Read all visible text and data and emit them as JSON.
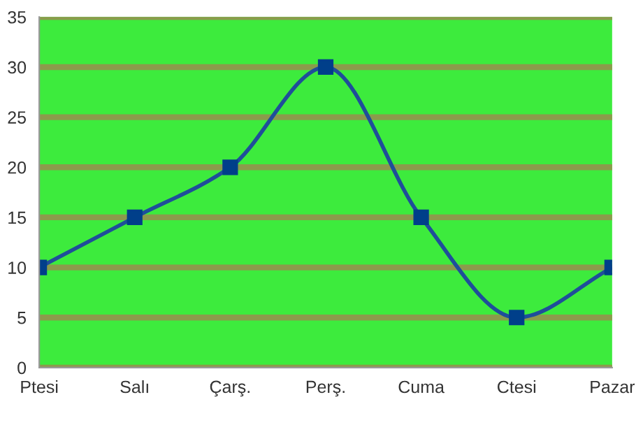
{
  "chart_data": {
    "type": "line",
    "categories": [
      "Ptesi",
      "Salı",
      "Çarş.",
      "Perş.",
      "Cuma",
      "Ctesi",
      "Pazar"
    ],
    "series": [
      {
        "color": "#1f4e9a",
        "values": [
          10,
          15,
          20,
          30,
          15,
          5,
          10
        ]
      }
    ],
    "ylim": [
      0,
      35
    ],
    "yticks": [
      0,
      5,
      10,
      15,
      20,
      25,
      30,
      35
    ],
    "grid": "y",
    "marker": "square",
    "line_style": "solid"
  }
}
